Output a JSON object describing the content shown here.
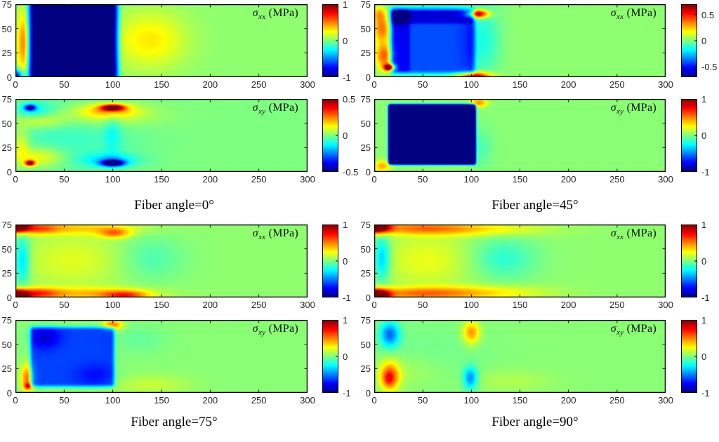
{
  "figure": {
    "description": "Stress field heatmaps for four fiber angles",
    "groups": [
      {
        "caption": "Fiber angle=0°"
      },
      {
        "caption": "Fiber angle=45°"
      },
      {
        "caption": "Fiber angle=75°"
      },
      {
        "caption": "Fiber angle=90°"
      }
    ]
  },
  "chart_data": [
    {
      "type": "heatmap",
      "group": "Fiber angle=0°",
      "title_sym": "σ",
      "title_sub": "xx",
      "title_unit": " (MPa)",
      "xlim": [
        0,
        300
      ],
      "ylim": [
        0,
        75
      ],
      "x_ticks": [
        0,
        50,
        100,
        150,
        200,
        250,
        300
      ],
      "y_ticks": [
        0,
        25,
        50,
        75
      ],
      "clim": [
        -1,
        1
      ],
      "colorbar_ticks": [
        1,
        0,
        -1
      ],
      "colorbar_tick_labels": [
        "1",
        "0",
        "-1"
      ],
      "colormap": "jet",
      "background_value": 0.03,
      "features": [
        {
          "t": "r",
          "x0": 22,
          "x1": 97,
          "y0": 4,
          "y1": 71,
          "v": -1.3,
          "soft": 14
        },
        {
          "t": "b",
          "cx": 1,
          "cy": 1,
          "sx": 5,
          "sy": 5,
          "v": -0.8
        },
        {
          "t": "b",
          "cx": 8,
          "cy": 35,
          "sx": 4.5,
          "sy": 22,
          "v": 0.45
        },
        {
          "t": "b",
          "cx": 138,
          "cy": 38,
          "sx": 26,
          "sy": 20,
          "v": 0.26
        }
      ]
    },
    {
      "type": "heatmap",
      "group": "Fiber angle=0°",
      "title_sym": "σ",
      "title_sub": "xy",
      "title_unit": " (MPa)",
      "xlim": [
        0,
        300
      ],
      "ylim": [
        0,
        75
      ],
      "x_ticks": [
        0,
        50,
        100,
        150,
        200,
        250,
        300
      ],
      "y_ticks": [
        0,
        25,
        50,
        75
      ],
      "clim": [
        -0.5,
        0.5
      ],
      "colorbar_ticks": [
        0.5,
        0,
        -0.5
      ],
      "colorbar_tick_labels": [
        "0.5",
        "0",
        "-0.5"
      ],
      "colormap": "jet",
      "background_value": 0,
      "features": [
        {
          "t": "b",
          "cx": 55,
          "cy": 40,
          "sx": 50,
          "sy": 28,
          "v": -0.07
        },
        {
          "t": "b",
          "cx": 100,
          "cy": 66,
          "sx": 8,
          "sy": 2.2,
          "v": 0.55
        },
        {
          "t": "b",
          "cx": 96,
          "cy": 63,
          "sx": 20,
          "sy": 5,
          "v": 0.17
        },
        {
          "t": "b",
          "cx": 90,
          "cy": 58,
          "sx": 38,
          "sy": 9,
          "v": 0.1
        },
        {
          "t": "b",
          "cx": 100,
          "cy": 9,
          "sx": 8,
          "sy": 2.2,
          "v": -0.55
        },
        {
          "t": "b",
          "cx": 97,
          "cy": 12,
          "sx": 20,
          "sy": 5,
          "v": -0.15
        },
        {
          "t": "b",
          "cx": 15,
          "cy": 9,
          "sx": 3.5,
          "sy": 2,
          "v": 0.5
        },
        {
          "t": "b",
          "cx": 24,
          "cy": 15,
          "sx": 18,
          "sy": 7,
          "v": 0.14
        },
        {
          "t": "b",
          "cx": 15,
          "cy": 66,
          "sx": 4,
          "sy": 2.2,
          "v": -0.42
        },
        {
          "t": "b",
          "cx": 20,
          "cy": 62,
          "sx": 13,
          "sy": 6,
          "v": -0.12
        },
        {
          "t": "b",
          "cx": 24,
          "cy": 53,
          "sx": 18,
          "sy": 6,
          "v": 0.12
        },
        {
          "t": "b",
          "cx": 6,
          "cy": 28,
          "sx": 6,
          "sy": 12,
          "v": 0.12
        },
        {
          "t": "b",
          "cx": 100,
          "cy": 40,
          "sx": 6,
          "sy": 18,
          "v": -0.08
        }
      ]
    },
    {
      "type": "heatmap",
      "group": "Fiber angle=45°",
      "title_sym": "σ",
      "title_sub": "xx",
      "title_unit": " (MPa)",
      "xlim": [
        0,
        300
      ],
      "ylim": [
        0,
        75
      ],
      "x_ticks": [
        0,
        50,
        100,
        150,
        200,
        250,
        300
      ],
      "y_ticks": [
        0,
        25,
        50,
        75
      ],
      "clim": [
        -0.7,
        0.7
      ],
      "colorbar_ticks": [
        0.5,
        0,
        -0.5
      ],
      "colorbar_tick_labels": [
        "0.5",
        "0",
        "-0.5"
      ],
      "colormap": "jet",
      "background_value": 0.02,
      "features": [
        {
          "t": "r",
          "x0": 21,
          "x1": 99,
          "y0": 8,
          "y1": 66,
          "v": -0.44,
          "soft": 9
        },
        {
          "t": "r",
          "x0": 21,
          "x1": 99,
          "y0": 58,
          "y1": 66,
          "v": -0.16,
          "soft": 5
        },
        {
          "t": "r",
          "x0": 21,
          "x1": 34,
          "y0": 8,
          "y1": 66,
          "v": -0.12,
          "soft": 5
        },
        {
          "t": "b",
          "cx": 25,
          "cy": 62,
          "sx": 7,
          "sy": 6,
          "v": -0.18
        },
        {
          "t": "b",
          "cx": 16,
          "cy": 10,
          "sx": 4,
          "sy": 2.5,
          "v": 0.85
        },
        {
          "t": "b",
          "cx": 10,
          "cy": 22,
          "sx": 6,
          "sy": 9,
          "v": 0.38
        },
        {
          "t": "b",
          "cx": 8,
          "cy": 50,
          "sx": 6,
          "sy": 10,
          "v": 0.35
        },
        {
          "t": "b",
          "cx": 5,
          "cy": 66,
          "sx": 5,
          "sy": 6,
          "v": 0.22
        },
        {
          "t": "b",
          "cx": 106,
          "cy": 65,
          "sx": 8,
          "sy": 3,
          "v": 0.7
        },
        {
          "t": "b",
          "cx": 104,
          "cy": 1,
          "sx": 12,
          "sy": 3,
          "v": 0.6
        },
        {
          "t": "b",
          "cx": 112,
          "cy": 38,
          "sx": 12,
          "sy": 26,
          "v": -0.16
        },
        {
          "t": "b",
          "cx": 55,
          "cy": 73,
          "sx": 35,
          "sy": 3.5,
          "v": -0.1
        }
      ]
    },
    {
      "type": "heatmap",
      "group": "Fiber angle=45°",
      "title_sym": "σ",
      "title_sub": "xy",
      "title_unit": " (MPa)",
      "xlim": [
        0,
        300
      ],
      "ylim": [
        0,
        75
      ],
      "x_ticks": [
        0,
        50,
        100,
        150,
        200,
        250,
        300
      ],
      "y_ticks": [
        0,
        25,
        50,
        75
      ],
      "clim": [
        -1,
        1
      ],
      "colorbar_ticks": [
        1,
        0,
        -1
      ],
      "colorbar_tick_labels": [
        "1",
        "0",
        "-1"
      ],
      "colormap": "jet",
      "background_value": 0.02,
      "features": [
        {
          "t": "r",
          "x0": 17,
          "x1": 102,
          "y0": 10,
          "y1": 67,
          "v": -1.5,
          "soft": 4.5
        },
        {
          "t": "b",
          "cx": 108,
          "cy": 71,
          "sx": 6,
          "sy": 3,
          "v": 0.45
        },
        {
          "t": "b",
          "cx": 8,
          "cy": 6,
          "sx": 6,
          "sy": 4,
          "v": 0.4
        },
        {
          "t": "b",
          "cx": 110,
          "cy": 25,
          "sx": 8,
          "sy": 14,
          "v": -0.12
        }
      ]
    },
    {
      "type": "heatmap",
      "group": "Fiber angle=75°",
      "title_sym": "σ",
      "title_sub": "xx",
      "title_unit": " (MPa)",
      "xlim": [
        0,
        300
      ],
      "ylim": [
        0,
        75
      ],
      "x_ticks": [
        0,
        50,
        100,
        150,
        200,
        250,
        300
      ],
      "y_ticks": [
        0,
        25,
        50,
        75
      ],
      "clim": [
        -1,
        1
      ],
      "colorbar_ticks": [
        1,
        0,
        -1
      ],
      "colorbar_tick_labels": [
        "1",
        "0",
        "-1"
      ],
      "colormap": "jet",
      "background_value": 0.03,
      "features": [
        {
          "t": "b",
          "cx": 2,
          "cy": 74,
          "sx": 8,
          "sy": 4.5,
          "v": 1.4
        },
        {
          "t": "b",
          "cx": 2,
          "cy": 1,
          "sx": 8,
          "sy": 4.5,
          "v": 1.4
        },
        {
          "t": "b",
          "cx": 22,
          "cy": 71,
          "sx": 16,
          "sy": 4,
          "v": 0.45
        },
        {
          "t": "b",
          "cx": 22,
          "cy": 4,
          "sx": 16,
          "sy": 4,
          "v": 0.5
        },
        {
          "t": "b",
          "cx": 70,
          "cy": 71,
          "sx": 40,
          "sy": 4.5,
          "v": 0.28
        },
        {
          "t": "b",
          "cx": 75,
          "cy": 4,
          "sx": 45,
          "sy": 4.5,
          "v": 0.32
        },
        {
          "t": "b",
          "cx": 102,
          "cy": 66,
          "sx": 11,
          "sy": 3.5,
          "v": 0.42
        },
        {
          "t": "b",
          "cx": 113,
          "cy": 2,
          "sx": 16,
          "sy": 3.5,
          "v": 0.5
        },
        {
          "t": "b",
          "cx": 7,
          "cy": 38,
          "sx": 5.5,
          "sy": 18,
          "v": -0.38
        },
        {
          "t": "b",
          "cx": 60,
          "cy": 38,
          "sx": 40,
          "sy": 20,
          "v": 0.16
        },
        {
          "t": "b",
          "cx": 138,
          "cy": 40,
          "sx": 24,
          "sy": 16,
          "v": -0.14
        }
      ]
    },
    {
      "type": "heatmap",
      "group": "Fiber angle=75°",
      "title_sym": "σ",
      "title_sub": "xy",
      "title_unit": " (MPa)",
      "xlim": [
        0,
        300
      ],
      "ylim": [
        0,
        75
      ],
      "x_ticks": [
        0,
        50,
        100,
        150,
        200,
        250,
        300
      ],
      "y_ticks": [
        0,
        25,
        50,
        75
      ],
      "clim": [
        -1,
        1
      ],
      "colorbar_ticks": [
        1,
        0,
        -1
      ],
      "colorbar_tick_labels": [
        "1",
        "0",
        "-1"
      ],
      "colormap": "jet",
      "background_value": 0.02,
      "features": [
        {
          "t": "r",
          "x0": 19,
          "x1": 98,
          "y0": 10,
          "y1": 64,
          "v": -0.64,
          "soft": 7
        },
        {
          "t": "b",
          "cx": 30,
          "cy": 57,
          "sx": 11,
          "sy": 8,
          "v": -0.22
        },
        {
          "t": "b",
          "cx": 82,
          "cy": 18,
          "sx": 14,
          "sy": 8,
          "v": -0.12
        },
        {
          "t": "b",
          "cx": 100,
          "cy": 70,
          "sx": 7,
          "sy": 3.5,
          "v": 0.5
        },
        {
          "t": "b",
          "cx": 12,
          "cy": 16,
          "sx": 4.5,
          "sy": 9,
          "v": 0.5
        },
        {
          "t": "b",
          "cx": 13,
          "cy": 7,
          "sx": 3,
          "sy": 2.5,
          "v": 0.55
        },
        {
          "t": "b",
          "cx": 140,
          "cy": 8,
          "sx": 28,
          "sy": 7,
          "v": 0.12
        },
        {
          "t": "b",
          "cx": 128,
          "cy": 55,
          "sx": 20,
          "sy": 10,
          "v": -0.07
        }
      ]
    },
    {
      "type": "heatmap",
      "group": "Fiber angle=90°",
      "title_sym": "σ",
      "title_sub": "xx",
      "title_unit": " (MPa)",
      "xlim": [
        0,
        300
      ],
      "ylim": [
        0,
        75
      ],
      "x_ticks": [
        0,
        50,
        100,
        150,
        200,
        250,
        300
      ],
      "y_ticks": [
        0,
        25,
        50,
        75
      ],
      "clim": [
        -1,
        1
      ],
      "colorbar_ticks": [
        1,
        0,
        -1
      ],
      "colorbar_tick_labels": [
        "1",
        "0",
        "-1"
      ],
      "colormap": "jet",
      "background_value": 0.03,
      "features": [
        {
          "t": "b",
          "cx": 3,
          "cy": 73,
          "sx": 9,
          "sy": 4.5,
          "v": 1.3
        },
        {
          "t": "b",
          "cx": 3,
          "cy": 2,
          "sx": 9,
          "sy": 4.5,
          "v": 1.3
        },
        {
          "t": "b",
          "cx": 45,
          "cy": 71,
          "sx": 38,
          "sy": 4.5,
          "v": 0.42
        },
        {
          "t": "b",
          "cx": 45,
          "cy": 4,
          "sx": 38,
          "sy": 4.5,
          "v": 0.42
        },
        {
          "t": "b",
          "cx": 115,
          "cy": 70,
          "sx": 45,
          "sy": 5,
          "v": 0.22
        },
        {
          "t": "b",
          "cx": 115,
          "cy": 5,
          "sx": 45,
          "sy": 5,
          "v": 0.25
        },
        {
          "t": "b",
          "cx": 8,
          "cy": 40,
          "sx": 6,
          "sy": 16,
          "v": -0.42
        },
        {
          "t": "b",
          "cx": 55,
          "cy": 38,
          "sx": 35,
          "sy": 20,
          "v": 0.18
        },
        {
          "t": "b",
          "cx": 132,
          "cy": 40,
          "sx": 24,
          "sy": 15,
          "v": -0.2
        }
      ]
    },
    {
      "type": "heatmap",
      "group": "Fiber angle=90°",
      "title_sym": "σ",
      "title_sub": "xy",
      "title_unit": " (MPa)",
      "xlim": [
        0,
        300
      ],
      "ylim": [
        0,
        75
      ],
      "x_ticks": [
        0,
        50,
        100,
        150,
        200,
        250,
        300
      ],
      "y_ticks": [
        0,
        25,
        50,
        75
      ],
      "clim": [
        -1,
        1
      ],
      "colorbar_ticks": [
        1,
        0,
        -1
      ],
      "colorbar_tick_labels": [
        "1",
        "0",
        "-1"
      ],
      "colormap": "jet",
      "background_value": 0.02,
      "features": [
        {
          "t": "b",
          "cx": 16,
          "cy": 60,
          "sx": 7,
          "sy": 9,
          "v": -0.55
        },
        {
          "t": "b",
          "cx": 16,
          "cy": 17,
          "sx": 7,
          "sy": 10,
          "v": 0.6
        },
        {
          "t": "b",
          "cx": 15,
          "cy": 14,
          "sx": 3.5,
          "sy": 5,
          "v": 0.2
        },
        {
          "t": "b",
          "cx": 100,
          "cy": 62,
          "sx": 6,
          "sy": 8,
          "v": 0.45
        },
        {
          "t": "b",
          "cx": 99,
          "cy": 15,
          "sx": 5,
          "sy": 8,
          "v": -0.5
        },
        {
          "t": "b",
          "cx": 55,
          "cy": 38,
          "sx": 45,
          "sy": 25,
          "v": -0.05
        },
        {
          "t": "b",
          "cx": 35,
          "cy": 22,
          "sx": 25,
          "sy": 12,
          "v": 0.08
        },
        {
          "t": "b",
          "cx": 140,
          "cy": 12,
          "sx": 30,
          "sy": 8,
          "v": 0.08
        }
      ]
    }
  ]
}
